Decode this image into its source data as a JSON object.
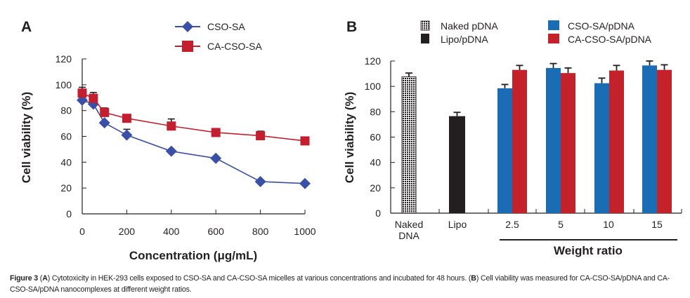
{
  "chart_data": [
    {
      "panel": "A",
      "type": "line",
      "title": "",
      "xlabel": "Concentration (μg/mL)",
      "ylabel": "Cell viability (%)",
      "xlim": [
        0,
        1000
      ],
      "ylim": [
        0,
        120
      ],
      "xticks": [
        0,
        200,
        400,
        600,
        800,
        1000
      ],
      "yticks": [
        0,
        20,
        40,
        60,
        80,
        100,
        120
      ],
      "grid": false,
      "legend_position": "top-center",
      "series": [
        {
          "name": "CSO-SA",
          "marker": "diamond",
          "color": "#3a4fa6",
          "x": [
            0,
            50,
            100,
            200,
            400,
            600,
            800,
            1000
          ],
          "values": [
            88,
            85,
            70.5,
            61,
            48.5,
            43,
            25,
            23.5
          ],
          "errors": [
            0,
            0,
            0,
            4.5,
            0,
            0,
            0,
            0
          ]
        },
        {
          "name": "CA-CSO-SA",
          "marker": "square",
          "color": "#c41f2e",
          "x": [
            0,
            50,
            100,
            200,
            400,
            600,
            800,
            1000
          ],
          "values": [
            93.5,
            89.5,
            78.5,
            74,
            68,
            63,
            60.5,
            56.5
          ],
          "errors": [
            4.5,
            4.5,
            3.5,
            0,
            5.5,
            0,
            3.5,
            3
          ]
        }
      ]
    },
    {
      "panel": "B",
      "type": "bar",
      "title": "",
      "xlabel": "Weight ratio",
      "ylabel": "Cell viability (%)",
      "ylim": [
        0,
        120
      ],
      "yticks": [
        0,
        20,
        40,
        60,
        80,
        100,
        120
      ],
      "grid": false,
      "legend_position": "top",
      "categories": [
        "Naked DNA",
        "Lipo",
        "2.5",
        "5",
        "10",
        "15"
      ],
      "controls": [
        {
          "category": "Naked DNA",
          "name": "Naked pDNA",
          "value": 107.5,
          "error": 3,
          "color": "#ffffff",
          "pattern": "dotted"
        },
        {
          "category": "Lipo",
          "name": "Lipo/pDNA",
          "value": 76.5,
          "error": 3,
          "color": "#231f20"
        }
      ],
      "series": [
        {
          "name": "CSO-SA/pDNA",
          "color": "#1a6db5",
          "categories": [
            "2.5",
            "5",
            "10",
            "15"
          ],
          "values": [
            98.5,
            114.5,
            102.5,
            116.5
          ],
          "errors": [
            3,
            3.5,
            4,
            3.5
          ]
        },
        {
          "name": "CA-CSO-SA/pDNA",
          "color": "#c4222b",
          "categories": [
            "2.5",
            "5",
            "10",
            "15"
          ],
          "values": [
            113,
            110.5,
            112.5,
            113
          ],
          "errors": [
            3.5,
            4,
            4,
            4
          ]
        }
      ],
      "group_bracket_label": "Weight ratio"
    }
  ],
  "panel_labels": {
    "a": "A",
    "b": "B"
  },
  "axisA": {
    "ylabel": "Cell viability (%)",
    "xlabel": "Concentration (μg/mL)",
    "xtick_labels": [
      "0",
      "200",
      "400",
      "600",
      "800",
      "1000"
    ],
    "ytick_labels": [
      "0",
      "20",
      "40",
      "60",
      "80",
      "100",
      "120"
    ]
  },
  "axisB": {
    "ylabel": "Cell viability (%)",
    "xlabel": "Weight ratio",
    "cat_labels": [
      [
        "Naked",
        "DNA"
      ],
      [
        "Lipo"
      ],
      [
        "2.5"
      ],
      [
        "5"
      ],
      [
        "10"
      ],
      [
        "15"
      ]
    ],
    "ytick_labels": [
      "0",
      "20",
      "40",
      "60",
      "80",
      "100",
      "120"
    ]
  },
  "legendA": [
    "CSO-SA",
    "CA-CSO-SA"
  ],
  "legendB": [
    "Naked pDNA",
    "Lipo/pDNA",
    "CSO-SA/pDNA",
    "CA-CSO-SA/pDNA"
  ],
  "caption": {
    "figure_label": "Figure 3",
    "a_label": "A",
    "a_text": "Cytotoxicity in HEK-293 cells exposed to CSO-SA and CA-CSO-SA micelles at various concentrations and incubated for 48 hours.",
    "b_label": "B",
    "b_text": "Cell viability was measured for CA-CSO-SA/pDNA and CA-CSO-SA/pDNA nanocomplexes at different weight ratios."
  }
}
